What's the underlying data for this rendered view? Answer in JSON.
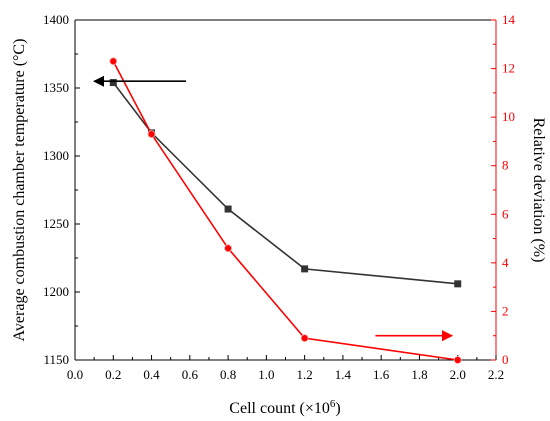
{
  "chart_data": {
    "type": "line",
    "xlabel": "Cell count (×10",
    "xlabel_sup": "6",
    "xlabel_close": ")",
    "ylabel_left": "Average combustion chamber temperature (°C)",
    "ylabel_right": "Relative deviation (%)",
    "xlim": [
      0.0,
      2.2
    ],
    "ylim_left": [
      1150,
      1400
    ],
    "ylim_right": [
      0,
      14
    ],
    "x_ticks": [
      "0.0",
      "0.2",
      "0.4",
      "0.6",
      "0.8",
      "1.0",
      "1.2",
      "1.4",
      "1.6",
      "1.8",
      "2.0",
      "2.2"
    ],
    "y_left_ticks": [
      "1150",
      "1200",
      "1250",
      "1300",
      "1350",
      "1400"
    ],
    "y_right_ticks": [
      "0",
      "2",
      "4",
      "6",
      "8",
      "10",
      "12",
      "14"
    ],
    "grid": false,
    "series": [
      {
        "axis": "left",
        "color": "#333333",
        "marker": "square",
        "x": [
          0.2,
          0.4,
          0.8,
          1.2,
          2.0
        ],
        "y": [
          1354,
          1317,
          1261,
          1217,
          1206
        ]
      },
      {
        "axis": "right",
        "color": "#ff0000",
        "marker": "circle",
        "x": [
          0.2,
          0.4,
          0.8,
          1.2,
          2.0
        ],
        "y": [
          12.3,
          9.3,
          4.6,
          0.9,
          0.0
        ]
      }
    ],
    "annotations": [
      {
        "type": "arrow",
        "direction": "left",
        "color": "#000000",
        "points_to": "left-axis",
        "x_from": 0.58,
        "x_to": 0.1,
        "y_left": 1355
      },
      {
        "type": "arrow",
        "direction": "right",
        "color": "#ff0000",
        "points_to": "right-axis",
        "x_from": 1.57,
        "x_to": 1.97,
        "y_right": 1.0
      }
    ]
  }
}
